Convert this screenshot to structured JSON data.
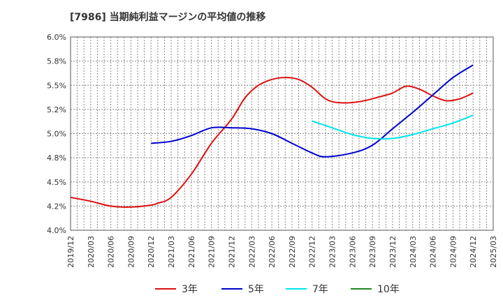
{
  "title": "[7986]  当期純利益マージンの平均値の推移",
  "chart_data": {
    "type": "line",
    "title": "[7986]  当期純利益マージンの平均値の推移",
    "xlabel": "",
    "ylabel": "",
    "ylim": [
      4.0,
      6.0
    ],
    "grid": true,
    "legend_position": "bottom",
    "y_ticks": [
      "4.0%",
      "4.2%",
      "4.5%",
      "4.8%",
      "5.0%",
      "5.2%",
      "5.5%",
      "5.8%",
      "6.0%"
    ],
    "y_tick_values": [
      4.0,
      4.25,
      4.5,
      4.75,
      5.0,
      5.25,
      5.5,
      5.75,
      6.0
    ],
    "x_ticks": [
      "2019/12",
      "2020/03",
      "2020/06",
      "2020/09",
      "2020/12",
      "2021/03",
      "2021/06",
      "2021/09",
      "2021/12",
      "2022/03",
      "2022/06",
      "2022/09",
      "2022/12",
      "2023/03",
      "2023/06",
      "2023/09",
      "2023/12",
      "2024/03",
      "2024/06",
      "2024/09",
      "2024/12",
      "2025/03"
    ],
    "series": [
      {
        "name": "3年",
        "color": "#dd1111",
        "points": [
          [
            "2019/12",
            4.34
          ],
          [
            "2020/03",
            4.3
          ],
          [
            "2020/06",
            4.25
          ],
          [
            "2020/09",
            4.24
          ],
          [
            "2020/12",
            4.26
          ],
          [
            "2021/01",
            4.28
          ],
          [
            "2021/03",
            4.34
          ],
          [
            "2021/06",
            4.58
          ],
          [
            "2021/09",
            4.9
          ],
          [
            "2021/12",
            5.15
          ],
          [
            "2022/02",
            5.37
          ],
          [
            "2022/04",
            5.5
          ],
          [
            "2022/06",
            5.56
          ],
          [
            "2022/08",
            5.58
          ],
          [
            "2022/10",
            5.56
          ],
          [
            "2022/12",
            5.48
          ],
          [
            "2023/02",
            5.36
          ],
          [
            "2023/04",
            5.32
          ],
          [
            "2023/07",
            5.33
          ],
          [
            "2023/10",
            5.38
          ],
          [
            "2023/12",
            5.42
          ],
          [
            "2024/02",
            5.49
          ],
          [
            "2024/04",
            5.46
          ],
          [
            "2024/06",
            5.39
          ],
          [
            "2024/08",
            5.34
          ],
          [
            "2024/10",
            5.36
          ],
          [
            "2024/12",
            5.42
          ]
        ]
      },
      {
        "name": "5年",
        "color": "#0000cc",
        "points": [
          [
            "2020/12",
            4.9
          ],
          [
            "2021/03",
            4.92
          ],
          [
            "2021/06",
            4.98
          ],
          [
            "2021/09",
            5.06
          ],
          [
            "2021/12",
            5.06
          ],
          [
            "2022/03",
            5.05
          ],
          [
            "2022/06",
            5.0
          ],
          [
            "2022/09",
            4.9
          ],
          [
            "2022/12",
            4.8
          ],
          [
            "2023/02",
            4.76
          ],
          [
            "2023/06",
            4.8
          ],
          [
            "2023/09",
            4.88
          ],
          [
            "2023/12",
            5.05
          ],
          [
            "2024/03",
            5.22
          ],
          [
            "2024/06",
            5.4
          ],
          [
            "2024/09",
            5.58
          ],
          [
            "2024/12",
            5.71
          ]
        ]
      },
      {
        "name": "7年",
        "color": "#00e5ee",
        "points": [
          [
            "2022/12",
            5.13
          ],
          [
            "2023/03",
            5.06
          ],
          [
            "2023/06",
            4.99
          ],
          [
            "2023/09",
            4.95
          ],
          [
            "2023/12",
            4.95
          ],
          [
            "2024/03",
            4.99
          ],
          [
            "2024/06",
            5.05
          ],
          [
            "2024/09",
            5.11
          ],
          [
            "2024/12",
            5.19
          ]
        ]
      },
      {
        "name": "10年",
        "color": "#228822",
        "points": []
      }
    ]
  }
}
